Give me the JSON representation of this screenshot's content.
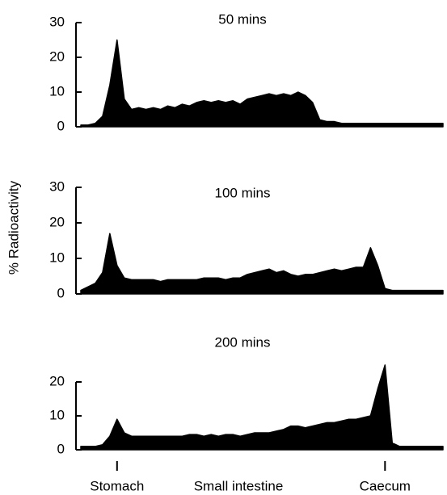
{
  "chart_data": [
    {
      "type": "area",
      "title": "50 mins",
      "color": "#000000",
      "x": [
        0,
        2,
        4,
        6,
        8,
        10,
        12,
        14,
        16,
        18,
        20,
        22,
        24,
        26,
        28,
        30,
        32,
        34,
        36,
        38,
        40,
        42,
        44,
        46,
        48,
        50,
        52,
        54,
        56,
        58,
        60,
        62,
        64,
        66,
        68,
        70,
        72,
        74,
        76,
        78,
        80,
        82,
        84,
        86,
        88,
        90,
        92,
        94,
        96,
        98,
        100
      ],
      "values": [
        0.5,
        0.5,
        1,
        3,
        12,
        25,
        8,
        5,
        5.5,
        5,
        5.5,
        5,
        6,
        5.5,
        6.5,
        6,
        7,
        7.5,
        7,
        7.5,
        7,
        7.5,
        6.5,
        8,
        8.5,
        9,
        9.5,
        9,
        9.5,
        9,
        10,
        9,
        7,
        2,
        1.5,
        1.5,
        1,
        1,
        1,
        1,
        1,
        1,
        1,
        1,
        1,
        1,
        1,
        1,
        1,
        1,
        1
      ],
      "xlim": [
        0,
        100
      ],
      "ylim": [
        0,
        30
      ],
      "yticks": [
        0,
        10,
        20,
        30
      ]
    },
    {
      "type": "area",
      "title": "100 mins",
      "ylabel": "% Radioactivity",
      "color": "#000000",
      "x": [
        0,
        2,
        4,
        6,
        8,
        10,
        12,
        14,
        16,
        18,
        20,
        22,
        24,
        26,
        28,
        30,
        32,
        34,
        36,
        38,
        40,
        42,
        44,
        46,
        48,
        50,
        52,
        54,
        56,
        58,
        60,
        62,
        64,
        66,
        68,
        70,
        72,
        74,
        76,
        78,
        80,
        82,
        84,
        86,
        88,
        90,
        92,
        94,
        96,
        98,
        100
      ],
      "values": [
        1,
        2,
        3,
        6,
        17,
        8,
        4.5,
        4,
        4,
        4,
        4,
        3.5,
        4,
        4,
        4,
        4,
        4,
        4.5,
        4.5,
        4.5,
        4,
        4.5,
        4.5,
        5.5,
        6,
        6.5,
        7,
        6,
        6.5,
        5.5,
        5,
        5.5,
        5.5,
        6,
        6.5,
        7,
        6.5,
        7,
        7.5,
        7.5,
        13,
        8,
        1.5,
        1,
        1,
        1,
        1,
        1,
        1,
        1,
        1
      ],
      "xlim": [
        0,
        100
      ],
      "ylim": [
        0,
        30
      ],
      "yticks": [
        0,
        10,
        20,
        30
      ]
    },
    {
      "type": "area",
      "title": "200 mins",
      "xlabel": "Small intestine",
      "color": "#000000",
      "x": [
        0,
        2,
        4,
        6,
        8,
        10,
        12,
        14,
        16,
        18,
        20,
        22,
        24,
        26,
        28,
        30,
        32,
        34,
        36,
        38,
        40,
        42,
        44,
        46,
        48,
        50,
        52,
        54,
        56,
        58,
        60,
        62,
        64,
        66,
        68,
        70,
        72,
        74,
        76,
        78,
        80,
        82,
        84,
        86,
        88,
        90,
        92,
        94,
        96,
        98,
        100
      ],
      "values": [
        1,
        1,
        1,
        1.5,
        4,
        9,
        5,
        4,
        4,
        4,
        4,
        4,
        4,
        4,
        4,
        4.5,
        4.5,
        4,
        4.5,
        4,
        4.5,
        4.5,
        4,
        4.5,
        5,
        5,
        5,
        5.5,
        6,
        7,
        7,
        6.5,
        7,
        7.5,
        8,
        8,
        8.5,
        9,
        9,
        9.5,
        10,
        18,
        25,
        2,
        1,
        1,
        1,
        1,
        1,
        1,
        1
      ],
      "xlim": [
        0,
        100
      ],
      "ylim": [
        0,
        20
      ],
      "yticks": [
        0,
        10,
        20
      ],
      "xticks": [
        {
          "value": 10,
          "label": "Stomach"
        },
        {
          "value": 84,
          "label": "Caecum"
        }
      ]
    }
  ]
}
